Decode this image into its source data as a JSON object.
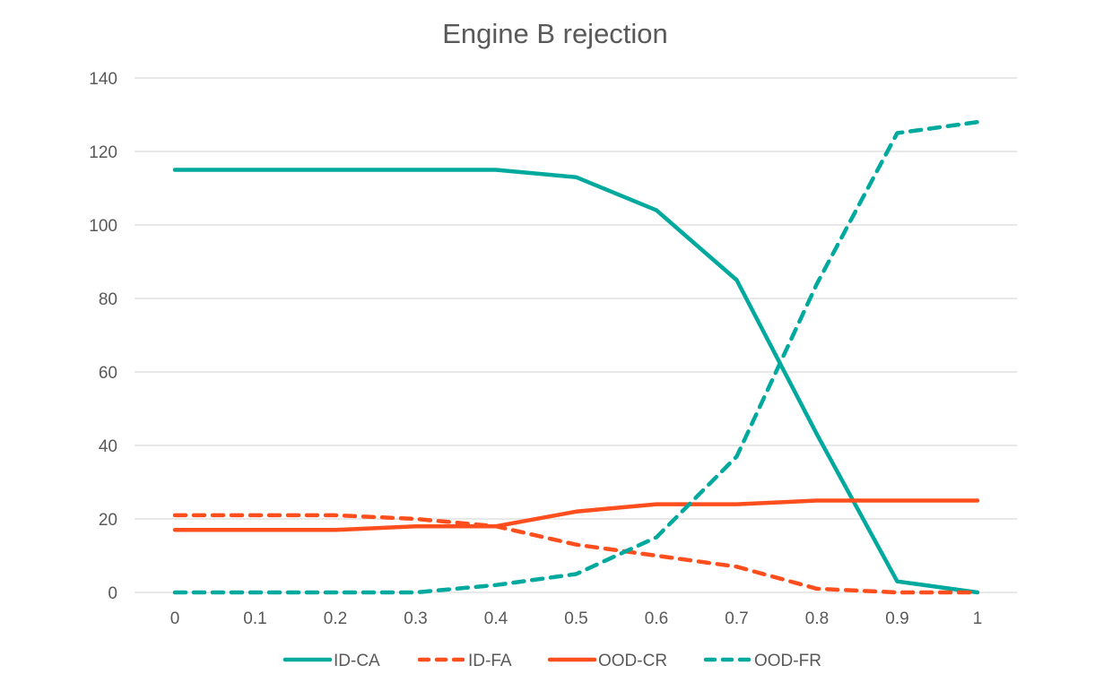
{
  "chart_data": {
    "type": "line",
    "title": "Engine B rejection",
    "xlabel": "",
    "ylabel": "",
    "x": [
      0,
      0.1,
      0.2,
      0.3,
      0.4,
      0.5,
      0.6,
      0.7,
      0.8,
      0.9,
      1
    ],
    "x_tick_labels": [
      "0",
      "0.1",
      "0.2",
      "0.3",
      "0.4",
      "0.5",
      "0.6",
      "0.7",
      "0.8",
      "0.9",
      "1"
    ],
    "ylim": [
      0,
      140
    ],
    "y_ticks": [
      0,
      20,
      40,
      60,
      80,
      100,
      120,
      140
    ],
    "grid": "horizontal",
    "legend_position": "bottom",
    "series": [
      {
        "name": "ID-CA",
        "color": "#00A99D",
        "dash": "solid",
        "values": [
          115,
          115,
          115,
          115,
          115,
          113,
          104,
          85,
          43,
          3,
          0
        ]
      },
      {
        "name": "ID-FA",
        "color": "#FF4E1D",
        "dash": "dashed",
        "values": [
          21,
          21,
          21,
          20,
          18,
          13,
          10,
          7,
          1,
          0,
          0
        ]
      },
      {
        "name": "OOD-CR",
        "color": "#FF4E1D",
        "dash": "solid",
        "values": [
          17,
          17,
          17,
          18,
          18,
          22,
          24,
          24,
          25,
          25,
          25
        ]
      },
      {
        "name": "OOD-FR",
        "color": "#00A99D",
        "dash": "dashed",
        "values": [
          0,
          0,
          0,
          0,
          2,
          5,
          15,
          37,
          84,
          125,
          128
        ]
      }
    ]
  }
}
